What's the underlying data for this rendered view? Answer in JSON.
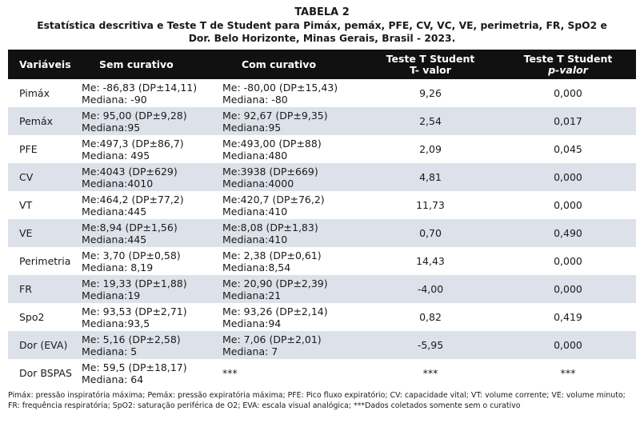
{
  "title": {
    "label": "TABELA 2",
    "caption": "Estatística descritiva e Teste T de Student para Pimáx, pemáx, PFE, CV, VC, VE, perimetria, FR, SpO2 e Dor.  Belo Horizonte, Minas Gerais, Brasil - 2023."
  },
  "table": {
    "headers": {
      "variables": "Variáveis",
      "sem": "Sem curativo",
      "com": "Com curativo",
      "t_line1": "Teste T Student",
      "t_line2": "T- valor",
      "p_line1": "Teste T Student",
      "p_line2": "p-valor"
    },
    "rows": [
      {
        "var": "Pimáx",
        "sem1": "Me: -86,83 (DP±14,11)",
        "sem2": "Mediana: -90",
        "com1": "Me: -80,00 (DP±15,43)",
        "com2": "Mediana: -80",
        "t": "9,26",
        "p": "0,000"
      },
      {
        "var": "Pemáx",
        "sem1": "Me: 95,00 (DP±9,28)",
        "sem2": "Mediana:95",
        "com1": "Me: 92,67 (DP±9,35)",
        "com2": "Mediana:95",
        "t": "2,54",
        "p": "0,017"
      },
      {
        "var": "PFE",
        "sem1": "Me:497,3 (DP±86,7)",
        "sem2": "Mediana: 495",
        "com1": "Me:493,00 (DP±88)",
        "com2": "Mediana:480",
        "t": "2,09",
        "p": "0,045"
      },
      {
        "var": "CV",
        "sem1": "Me:4043 (DP±629)",
        "sem2": "Mediana:4010",
        "com1": "Me:3938 (DP±669)",
        "com2": "Mediana:4000",
        "t": "4,81",
        "p": "0,000"
      },
      {
        "var": "VT",
        "sem1": "Me:464,2 (DP±77,2)",
        "sem2": "Mediana:445",
        "com1": "Me:420,7 (DP±76,2)",
        "com2": "Mediana:410",
        "t": "11,73",
        "p": "0,000"
      },
      {
        "var": "VE",
        "sem1": "Me:8,94 (DP±1,56)",
        "sem2": "Mediana:445",
        "com1": "Me:8,08 (DP±1,83)",
        "com2": "Mediana:410",
        "t": "0,70",
        "p": "0,490"
      },
      {
        "var": "Perimetria",
        "sem1": "Me: 3,70 (DP±0,58)",
        "sem2": "Mediana: 8,19",
        "com1": "Me: 2,38 (DP±0,61)",
        "com2": "Mediana:8,54",
        "t": "14,43",
        "p": "0,000"
      },
      {
        "var": "FR",
        "sem1": "Me: 19,33 (DP±1,88)",
        "sem2": "Mediana:19",
        "com1": "Me: 20,90 (DP±2,39)",
        "com2": "Mediana:21",
        "t": "-4,00",
        "p": "0,000"
      },
      {
        "var": "Spo2",
        "sem1": "Me: 93,53 (DP±2,71)",
        "sem2": "Mediana:93,5",
        "com1": "Me: 93,26 (DP±2,14)",
        "com2": "Mediana:94",
        "t": "0,82",
        "p": "0,419"
      },
      {
        "var": "Dor (EVA)",
        "sem1": "Me: 5,16 (DP±2,58)",
        "sem2": "Mediana: 5",
        "com1": "Me: 7,06 (DP±2,01)",
        "com2": "Mediana: 7",
        "t": "-5,95",
        "p": "0,000"
      },
      {
        "var": "Dor BSPAS",
        "sem1": "Me: 59,5 (DP±18,17)",
        "sem2": "Mediana: 64",
        "com1": "***",
        "com2": "",
        "t": "***",
        "p": "***"
      }
    ]
  },
  "footnote": "Pimáx: pressão inspiratória máxima; Pemáx: pressão expiratória máxima; PFE: Pico fluxo expiratório; CV: capacidade vital; VT: volume corrente; VE: volume minuto; FR: frequência respiratória; SpO2: saturação periférica de O2; EVA: escala visual analógica; ***Dados coletados somente sem o curativo"
}
